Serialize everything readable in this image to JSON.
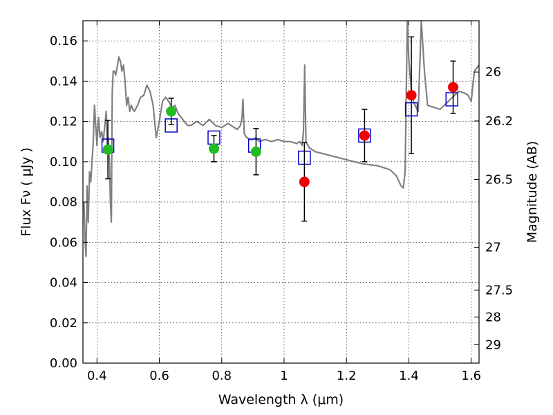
{
  "chart_data": {
    "type": "scatter",
    "xlabel": "Wavelength  λ (μm)",
    "ylabel": "Flux  Fν  ( μJy )",
    "y2label": "Magnitude (AB)",
    "xlim": [
      0.355,
      1.625
    ],
    "ylim": [
      0.0,
      0.17
    ],
    "grid": true,
    "x_ticks": [
      0.4,
      0.6,
      0.8,
      1.0,
      1.2,
      1.4,
      1.6
    ],
    "x_tick_labels": [
      "0.4",
      "0.6",
      "0.8",
      "1",
      "1.2",
      "1.4",
      "1.6"
    ],
    "y_ticks": [
      0.0,
      0.02,
      0.04,
      0.06,
      0.08,
      0.1,
      0.12,
      0.14,
      0.16
    ],
    "y_tick_labels": [
      "0.00",
      "0.02",
      "0.04",
      "0.06",
      "0.08",
      "0.10",
      "0.12",
      "0.14",
      "0.16"
    ],
    "y2_ticks": [
      26,
      26.2,
      26.5,
      27,
      27.5,
      28,
      29
    ],
    "y2_tick_labels": [
      "26",
      "26.2",
      "26.5",
      "27",
      "27.5",
      "28",
      "29"
    ],
    "colors": {
      "model": "#808080",
      "model_photometry": "#0000cc",
      "observed_green": "#22bb22",
      "observed_red": "#ee0000",
      "errorbar": "#000000"
    },
    "series": [
      {
        "marker": "line",
        "color": "#808080",
        "x": [
          0.358,
          0.362,
          0.365,
          0.368,
          0.372,
          0.376,
          0.38,
          0.384,
          0.388,
          0.392,
          0.396,
          0.4,
          0.405,
          0.41,
          0.415,
          0.42,
          0.425,
          0.43,
          0.433,
          0.436,
          0.44,
          0.443,
          0.446,
          0.449,
          0.452,
          0.456,
          0.46,
          0.465,
          0.47,
          0.475,
          0.48,
          0.485,
          0.49,
          0.495,
          0.5,
          0.505,
          0.51,
          0.515,
          0.52,
          0.53,
          0.54,
          0.55,
          0.56,
          0.57,
          0.58,
          0.59,
          0.6,
          0.61,
          0.62,
          0.63,
          0.64,
          0.65,
          0.655,
          0.66,
          0.67,
          0.68,
          0.69,
          0.7,
          0.72,
          0.74,
          0.76,
          0.78,
          0.8,
          0.82,
          0.84,
          0.85,
          0.86,
          0.865,
          0.868,
          0.872,
          0.88,
          0.89,
          0.9,
          0.91,
          0.92,
          0.94,
          0.96,
          0.98,
          1.0,
          1.02,
          1.04,
          1.05,
          1.058,
          1.062,
          1.066,
          1.07,
          1.08,
          1.1,
          1.15,
          1.2,
          1.25,
          1.3,
          1.34,
          1.36,
          1.375,
          1.382,
          1.388,
          1.395,
          1.4,
          1.41,
          1.42,
          1.43,
          1.44,
          1.45,
          1.46,
          1.48,
          1.5,
          1.52,
          1.54,
          1.56,
          1.58,
          1.59,
          1.6,
          1.61,
          1.625
        ],
        "y": [
          0.08,
          0.06,
          0.053,
          0.088,
          0.07,
          0.095,
          0.09,
          0.1,
          0.11,
          0.128,
          0.118,
          0.108,
          0.122,
          0.112,
          0.115,
          0.11,
          0.118,
          0.125,
          0.105,
          0.112,
          0.1,
          0.08,
          0.07,
          0.135,
          0.145,
          0.145,
          0.143,
          0.147,
          0.152,
          0.15,
          0.145,
          0.148,
          0.14,
          0.128,
          0.132,
          0.125,
          0.128,
          0.126,
          0.125,
          0.128,
          0.132,
          0.133,
          0.138,
          0.135,
          0.128,
          0.112,
          0.12,
          0.13,
          0.132,
          0.13,
          0.127,
          0.128,
          0.126,
          0.124,
          0.122,
          0.12,
          0.118,
          0.118,
          0.12,
          0.118,
          0.121,
          0.118,
          0.117,
          0.119,
          0.117,
          0.116,
          0.118,
          0.122,
          0.131,
          0.114,
          0.112,
          0.111,
          0.111,
          0.112,
          0.11,
          0.111,
          0.11,
          0.111,
          0.11,
          0.11,
          0.109,
          0.11,
          0.108,
          0.115,
          0.148,
          0.11,
          0.107,
          0.105,
          0.103,
          0.101,
          0.099,
          0.098,
          0.096,
          0.093,
          0.088,
          0.087,
          0.095,
          0.17,
          0.15,
          0.132,
          0.128,
          0.125,
          0.17,
          0.145,
          0.128,
          0.127,
          0.126,
          0.129,
          0.132,
          0.135,
          0.134,
          0.133,
          0.13,
          0.145,
          0.148
        ]
      },
      {
        "marker": "open-square",
        "color": "#0000cc",
        "x": [
          0.435,
          0.638,
          0.775,
          0.905,
          1.065,
          1.258,
          1.408,
          1.538
        ],
        "y": [
          0.108,
          0.118,
          0.112,
          0.108,
          0.102,
          0.113,
          0.126,
          0.131
        ]
      },
      {
        "marker": "filled-circle",
        "color": "#22bb22",
        "x": [
          0.435,
          0.638,
          0.775,
          0.91
        ],
        "y": [
          0.106,
          0.125,
          0.1065,
          0.105
        ],
        "yerr": [
          0.0145,
          0.0065,
          0.0065,
          0.0115
        ]
      },
      {
        "marker": "filled-circle",
        "color": "#ee0000",
        "x": [
          1.065,
          1.258,
          1.408,
          1.542
        ],
        "y": [
          0.09,
          0.113,
          0.133,
          0.137
        ],
        "yerr": [
          0.0195,
          0.013,
          0.029,
          0.013
        ]
      }
    ]
  }
}
